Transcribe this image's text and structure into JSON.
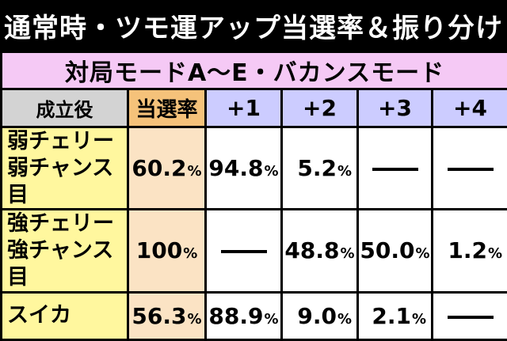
{
  "title": "通常時・ツモ運アップ当選率＆振り分け",
  "mode_header": "対局モードA〜E・バカンスモード",
  "columns": {
    "role": "成立役",
    "rate": "当選率",
    "p1": "+1",
    "p2": "+2",
    "p3": "+3",
    "p4": "+4"
  },
  "rows": [
    {
      "role_line1": "弱チェリー",
      "role_line2": "弱チャンス目",
      "rate": "60.2",
      "p1": "94.8",
      "p2": "5.2",
      "p3": "",
      "p4": ""
    },
    {
      "role_line1": "強チェリー",
      "role_line2": "強チャンス目",
      "rate": "100",
      "p1": "",
      "p2": "48.8",
      "p3": "50.0",
      "p4": "1.2"
    },
    {
      "role_line1": "スイカ",
      "role_line2": "",
      "rate": "56.3",
      "p1": "88.9",
      "p2": "9.0",
      "p3": "2.1",
      "p4": ""
    }
  ],
  "percent_sign": "%",
  "colors": {
    "title_bg": "#000000",
    "mode_bg": "#f5c9f5",
    "header_bg": "#ccccff",
    "role_header_bg": "#d3d3d3",
    "rate_header_bg": "#f5c27a",
    "role_bg": "#fff79e",
    "rate_bg": "#fbe3c4"
  }
}
